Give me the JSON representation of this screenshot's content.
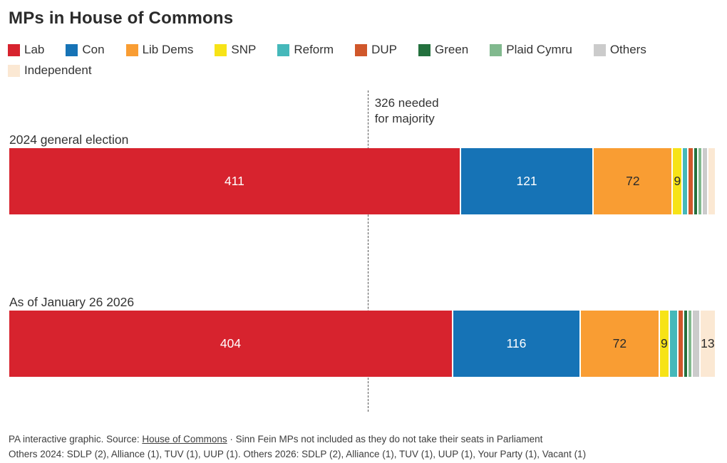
{
  "title": "MPs in House of Commons",
  "chart_data": {
    "type": "bar",
    "variant": "horizontal-stacked",
    "title": "MPs in House of Commons",
    "axis_total": 642,
    "grid": false,
    "legend_position": "top",
    "majority_annotation": {
      "value": 326,
      "line1": "326 needed",
      "line2": "for majority"
    },
    "parties": [
      {
        "name": "Lab",
        "color": "#d7232e",
        "label_color": "#ffffff"
      },
      {
        "name": "Con",
        "color": "#1673b6",
        "label_color": "#ffffff"
      },
      {
        "name": "Lib Dems",
        "color": "#f99d33",
        "label_color": "#2b2b2b"
      },
      {
        "name": "SNP",
        "color": "#f7e317",
        "label_color": "#2b2b2b"
      },
      {
        "name": "Reform",
        "color": "#45b8ba",
        "label_color": "#2b2b2b"
      },
      {
        "name": "DUP",
        "color": "#d0572b",
        "label_color": "#ffffff"
      },
      {
        "name": "Green",
        "color": "#24713e",
        "label_color": "#ffffff"
      },
      {
        "name": "Plaid Cymru",
        "color": "#81b98e",
        "label_color": "#2b2b2b"
      },
      {
        "name": "Others",
        "color": "#cbcbcb",
        "label_color": "#2b2b2b"
      },
      {
        "name": "Independent",
        "color": "#fbe8d3",
        "label_color": "#2b2b2b"
      }
    ],
    "bars": [
      {
        "label": "2024 general election",
        "values": [
          411,
          121,
          72,
          9,
          5,
          5,
          4,
          4,
          5,
          6
        ],
        "min_value_for_label": 9
      },
      {
        "label": "As of January 26 2026",
        "values": [
          404,
          116,
          72,
          9,
          8,
          5,
          4,
          4,
          7,
          13
        ],
        "min_value_for_label": 9
      }
    ]
  },
  "footer": {
    "line1_prefix": "PA interactive graphic. Source: ",
    "source_link": "House of Commons",
    "line1_suffix": " · Sinn Fein MPs not included as they do not take their seats in Parliament",
    "line2": "Others 2024: SDLP (2), Alliance (1), TUV (1), UUP (1). Others 2026: SDLP (2), Alliance (1), TUV (1), UUP (1), Your Party (1), Vacant (1)"
  }
}
